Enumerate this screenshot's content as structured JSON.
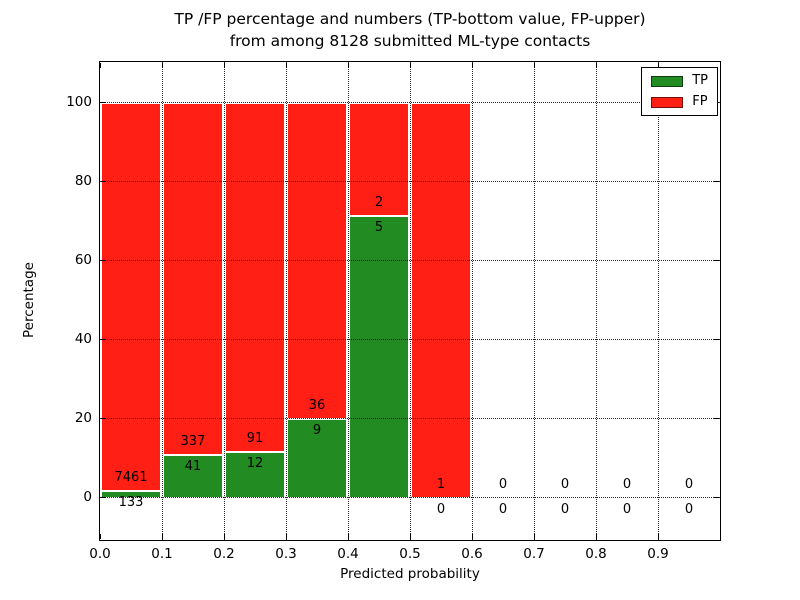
{
  "figure": {
    "title_line1": "TP /FP percentage and numbers (TP-bottom value, FP-upper)",
    "title_line2": "from among 8128 submitted ML-type contacts",
    "xlabel": "Predicted probability",
    "ylabel": "Percentage",
    "background": "#ffffff"
  },
  "legend": {
    "position": "upper right",
    "items": [
      {
        "label": "TP",
        "color": "#228b22"
      },
      {
        "label": "FP",
        "color": "#ff1f14"
      }
    ]
  },
  "chart_data": {
    "type": "bar",
    "stacked": true,
    "title": "TP /FP percentage and numbers (TP-bottom value, FP-upper) from among 8128 submitted ML-type contacts",
    "xlabel": "Predicted probability",
    "ylabel": "Percentage",
    "total_contacts": 8128,
    "xlim": [
      0.0,
      1.0
    ],
    "ylim": [
      -10.9,
      110.1
    ],
    "xticks": [
      "0.0",
      "0.1",
      "0.2",
      "0.3",
      "0.4",
      "0.5",
      "0.6",
      "0.7",
      "0.8",
      "0.9"
    ],
    "yticks": [
      0,
      20,
      40,
      60,
      80,
      100
    ],
    "grid": true,
    "bar_width": 0.1,
    "colors": {
      "tp": "#228b22",
      "fp": "#ff1f14",
      "bar_edge": "#ffffff"
    },
    "series": [
      {
        "name": "TP",
        "color": "#228b22",
        "values": [
          1.75,
          10.85,
          11.65,
          20.0,
          71.43,
          0.0,
          0,
          0,
          0,
          0
        ]
      },
      {
        "name": "FP",
        "color": "#ff1f14",
        "values": [
          98.25,
          89.15,
          88.35,
          80.0,
          28.57,
          100.0,
          0,
          0,
          0,
          0
        ]
      }
    ],
    "bins": [
      {
        "range": "0.0-0.1",
        "center": 0.05,
        "tp_count": 133,
        "fp_count": 7461,
        "tp_pct": 1.75,
        "fp_pct": 98.25,
        "has_bar": true
      },
      {
        "range": "0.1-0.2",
        "center": 0.15,
        "tp_count": 41,
        "fp_count": 337,
        "tp_pct": 10.85,
        "fp_pct": 89.15,
        "has_bar": true
      },
      {
        "range": "0.2-0.3",
        "center": 0.25,
        "tp_count": 12,
        "fp_count": 91,
        "tp_pct": 11.65,
        "fp_pct": 88.35,
        "has_bar": true
      },
      {
        "range": "0.3-0.4",
        "center": 0.35,
        "tp_count": 9,
        "fp_count": 36,
        "tp_pct": 20.0,
        "fp_pct": 80.0,
        "has_bar": true
      },
      {
        "range": "0.4-0.5",
        "center": 0.45,
        "tp_count": 5,
        "fp_count": 2,
        "tp_pct": 71.43,
        "fp_pct": 28.57,
        "has_bar": true
      },
      {
        "range": "0.5-0.6",
        "center": 0.55,
        "tp_count": 0,
        "fp_count": 1,
        "tp_pct": 0.0,
        "fp_pct": 100.0,
        "has_bar": true
      },
      {
        "range": "0.6-0.7",
        "center": 0.65,
        "tp_count": 0,
        "fp_count": 0,
        "tp_pct": 0,
        "fp_pct": 0,
        "has_bar": false
      },
      {
        "range": "0.7-0.8",
        "center": 0.75,
        "tp_count": 0,
        "fp_count": 0,
        "tp_pct": 0,
        "fp_pct": 0,
        "has_bar": false
      },
      {
        "range": "0.8-0.9",
        "center": 0.85,
        "tp_count": 0,
        "fp_count": 0,
        "tp_pct": 0,
        "fp_pct": 0,
        "has_bar": false
      },
      {
        "range": "0.9-1.0",
        "center": 0.95,
        "tp_count": 0,
        "fp_count": 0,
        "tp_pct": 0,
        "fp_pct": 0,
        "has_bar": false
      }
    ]
  }
}
